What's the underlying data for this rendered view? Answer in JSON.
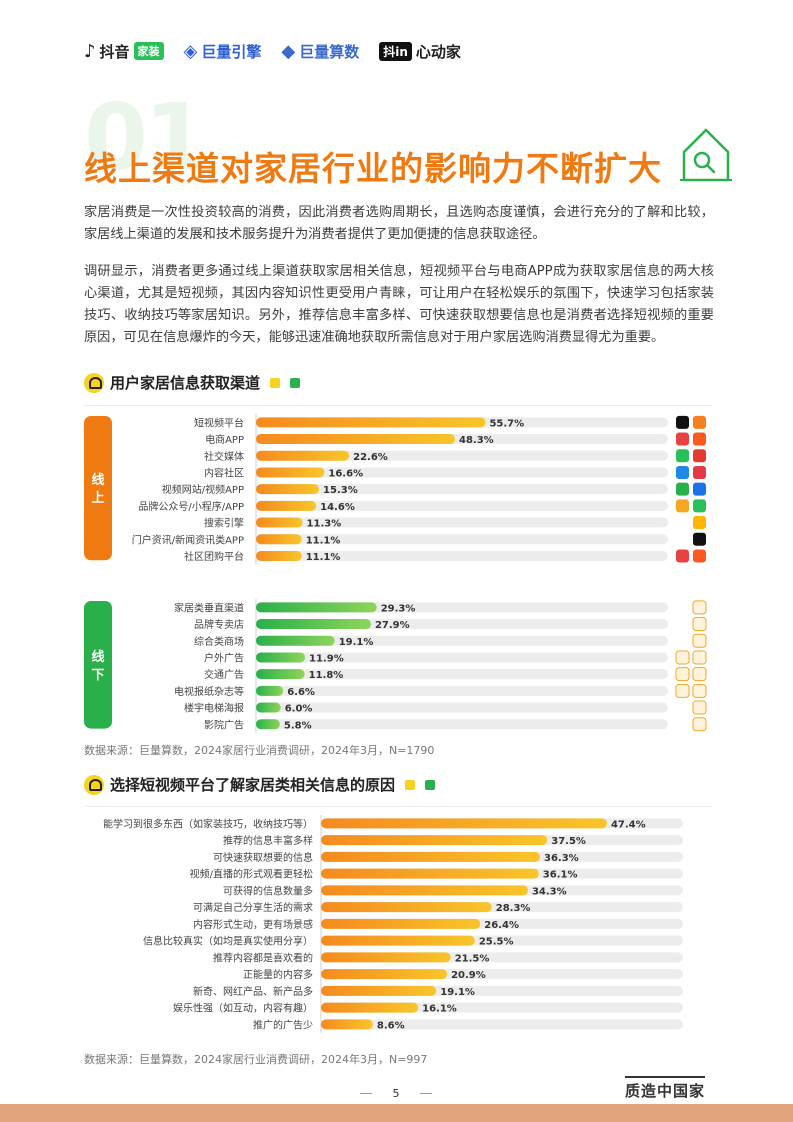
{
  "header": {
    "logos": [
      {
        "mark": "♪",
        "name": "抖音",
        "tag": "家装"
      },
      {
        "mark": "◈",
        "name": "巨量引擎"
      },
      {
        "mark": "◆",
        "name": "巨量算数"
      },
      {
        "mark": "抖in",
        "name": "心动家"
      }
    ]
  },
  "section": {
    "number": "01",
    "title": "线上渠道对家居行业的影响力不断扩大"
  },
  "paragraphs": [
    "家居消费是一次性投资较高的消费，因此消费者选购周期长，且选购态度谨慎，会进行充分的了解和比较，家居线上渠道的发展和技术服务提升为消费者提供了更加便捷的信息获取途径。",
    "调研显示，消费者更多通过线上渠道获取家居相关信息，短视频平台与电商APP成为获取家居信息的两大核心渠道，尤其是短视频，其因内容知识性更受用户青睐，可让用户在轻松娱乐的氛围下，快速学习包括家装技巧、收纳技巧等家居知识。另外，推荐信息丰富多样、可快速获取想要信息也是消费者选择短视频的重要原因，可见在信息爆炸的今天，能够迅速准确地获取所需信息对于用户家居选购消费显得尤为重要。"
  ],
  "chart1_title": "用户家居信息获取渠道",
  "chart2_title": "选择短视频平台了解家居类相关信息的原因",
  "source1": "数据来源：巨量算数，2024家居行业消费调研，2024年3月，N=1790",
  "source2": "数据来源：巨量算数，2024家居行业消费调研，2024年3月，N=997",
  "page_number": "5",
  "footer_brand": "质造中国家",
  "colors": {
    "orange": "#f07a12",
    "orange_bar_start": "#f58a1f",
    "orange_bar_end": "#f8c52a",
    "green_bar_start": "#29b04a",
    "green_bar_end": "#8fd45a",
    "track": "#ececec"
  },
  "chart_data": [
    {
      "type": "bar",
      "orientation": "horizontal",
      "title": "用户家居信息获取渠道",
      "unit": "%",
      "groups": [
        {
          "name": "线上",
          "color": "orange",
          "categories": [
            "短视频平台",
            "电商APP",
            "社交媒体",
            "内容社区",
            "视频网站/视频APP",
            "品牌公众号/小程序/APP",
            "搜索引擎",
            "门户资讯/新闻资讯类APP",
            "社区团购平台"
          ],
          "values": [
            55.7,
            48.3,
            22.6,
            16.6,
            15.3,
            14.6,
            11.3,
            11.1,
            11.1
          ],
          "labels": [
            "55.7%",
            "48.3%",
            "22.6%",
            "16.6%",
            "15.3%",
            "14.6%",
            "11.3%",
            "11.1%",
            "11.1%"
          ],
          "icons": [
            [
              "tiktok-icon",
              "xigua-icon"
            ],
            [
              "taobao-icon",
              "jd-icon"
            ],
            [
              "wechat-icon",
              "weibo-icon"
            ],
            [
              "zhihu-icon",
              "xiaohongshu-icon"
            ],
            [
              "iqiyi-icon",
              "tencent-video-icon"
            ],
            [
              "miniprogram-icon",
              "moments-icon"
            ],
            [
              "baidu-icon"
            ],
            [
              "toutiao-icon"
            ],
            [
              "meituan-icon",
              "pinduoduo-icon"
            ]
          ]
        },
        {
          "name": "线下",
          "color": "green",
          "categories": [
            "家居类垂直渠道",
            "品牌专卖店",
            "综合类商场",
            "户外广告",
            "交通广告",
            "电视报纸杂志等",
            "楼宇电梯海报",
            "影院广告"
          ],
          "values": [
            29.3,
            27.9,
            19.1,
            11.9,
            11.8,
            6.6,
            6.0,
            5.8
          ],
          "labels": [
            "29.3%",
            "27.9%",
            "19.1%",
            "11.9%",
            "11.8%",
            "6.6%",
            "6.0%",
            "5.8%"
          ],
          "icons": [
            [
              "store-icon"
            ],
            [
              "shop-icon"
            ],
            [
              "mall-icon"
            ],
            [
              "billboard-icon",
              "signboard-icon"
            ],
            [
              "bus-icon",
              "train-icon"
            ],
            [
              "tv-icon",
              "newspaper-icon"
            ],
            [
              "elevator-icon"
            ],
            [
              "cinema-icon"
            ]
          ]
        }
      ],
      "xlim": [
        0,
        100
      ]
    },
    {
      "type": "bar",
      "orientation": "horizontal",
      "title": "选择短视频平台了解家居类相关信息的原因",
      "unit": "%",
      "categories": [
        "能学习到很多东西（如家装技巧，收纳技巧等）",
        "推荐的信息丰富多样",
        "可快速获取想要的信息",
        "视频/直播的形式观看更轻松",
        "可获得的信息数量多",
        "可满足自己分享生活的需求",
        "内容形式生动，更有场景感",
        "信息比较真实（如均是真实使用分享）",
        "推荐内容都是喜欢看的",
        "正能量的内容多",
        "新奇、网红产品、新产品多",
        "娱乐性强（如互动，内容有趣）",
        "推广的广告少"
      ],
      "values": [
        47.4,
        37.5,
        36.3,
        36.1,
        34.3,
        28.3,
        26.4,
        25.5,
        21.5,
        20.9,
        19.1,
        16.1,
        8.6
      ],
      "labels": [
        "47.4%",
        "37.5%",
        "36.3%",
        "36.1%",
        "34.3%",
        "28.3%",
        "26.4%",
        "25.5%",
        "21.5%",
        "20.9%",
        "19.1%",
        "16.1%",
        "8.6%"
      ],
      "xlim": [
        0,
        100
      ]
    }
  ]
}
